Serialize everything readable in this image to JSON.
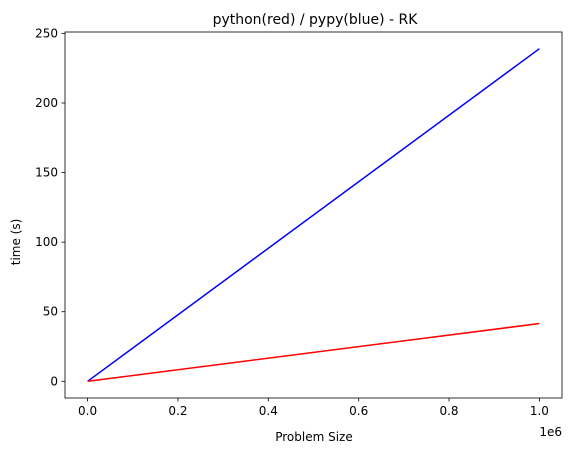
{
  "chart_data": {
    "type": "line",
    "title": "python(red) / pypy(blue) - RK",
    "xlabel": "Problem Size",
    "ylabel": "time (s)",
    "x_offset_text": "1e6",
    "xlim": [
      -50000,
      1050000
    ],
    "ylim": [
      -12,
      251
    ],
    "xticks": [
      0,
      200000,
      400000,
      600000,
      800000,
      1000000
    ],
    "xtick_labels": [
      "0.0",
      "0.2",
      "0.4",
      "0.6",
      "0.8",
      "1.0"
    ],
    "yticks": [
      0,
      50,
      100,
      150,
      200,
      250
    ],
    "ytick_labels": [
      "0",
      "50",
      "100",
      "150",
      "200",
      "250"
    ],
    "grid": false,
    "series": [
      {
        "color": "#0000ff",
        "x": [
          0,
          1000000
        ],
        "y": [
          0,
          239
        ]
      },
      {
        "color": "#ff0000",
        "x": [
          0,
          1000000
        ],
        "y": [
          0,
          41.5
        ]
      }
    ]
  }
}
